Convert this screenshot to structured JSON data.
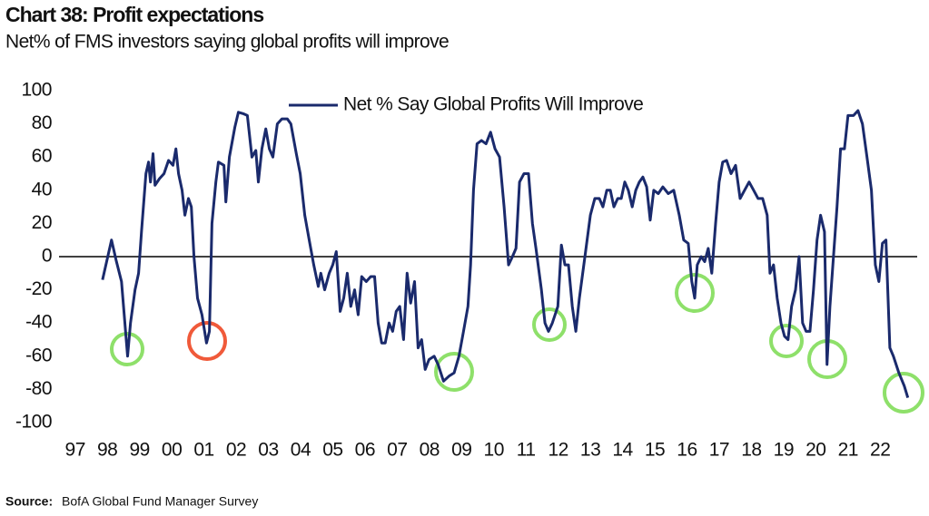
{
  "chart_data": {
    "type": "line",
    "title": "Chart 38: Profit expectations",
    "subtitle": "Net% of FMS investors saying global profits will improve",
    "source": {
      "label": "Source:",
      "text": "BofA Global Fund Manager Survey"
    },
    "legend": "top",
    "xlim": [
      1996.5,
      2023.15
    ],
    "ylim": [
      -100,
      100
    ],
    "yticks": [
      -100,
      -80,
      -60,
      -40,
      -20,
      0,
      20,
      40,
      60,
      80,
      100
    ],
    "xticks": [
      {
        "value": 1997,
        "label": "97"
      },
      {
        "value": 1998,
        "label": "98"
      },
      {
        "value": 1999,
        "label": "99"
      },
      {
        "value": 2000,
        "label": "00"
      },
      {
        "value": 2001,
        "label": "01"
      },
      {
        "value": 2002,
        "label": "02"
      },
      {
        "value": 2003,
        "label": "03"
      },
      {
        "value": 2004,
        "label": "04"
      },
      {
        "value": 2005,
        "label": "05"
      },
      {
        "value": 2006,
        "label": "06"
      },
      {
        "value": 2007,
        "label": "07"
      },
      {
        "value": 2008,
        "label": "08"
      },
      {
        "value": 2009,
        "label": "09"
      },
      {
        "value": 2010,
        "label": "10"
      },
      {
        "value": 2011,
        "label": "11"
      },
      {
        "value": 2012,
        "label": "12"
      },
      {
        "value": 2013,
        "label": "13"
      },
      {
        "value": 2014,
        "label": "14"
      },
      {
        "value": 2015,
        "label": "15"
      },
      {
        "value": 2016,
        "label": "16"
      },
      {
        "value": 2017,
        "label": "17"
      },
      {
        "value": 2018,
        "label": "18"
      },
      {
        "value": 2019,
        "label": "19"
      },
      {
        "value": 2020,
        "label": "20"
      },
      {
        "value": 2021,
        "label": "21"
      },
      {
        "value": 2022,
        "label": "22"
      }
    ],
    "x": [
      1997.85,
      1998.13,
      1998.27,
      1998.44,
      1998.63,
      1998.72,
      1998.86,
      1998.97,
      1999.06,
      1999.2,
      1999.28,
      1999.34,
      1999.42,
      1999.48,
      1999.62,
      1999.76,
      1999.9,
      2000.04,
      2000.13,
      2000.21,
      2000.32,
      2000.41,
      2000.52,
      2000.61,
      2000.69,
      2000.8,
      2000.94,
      2001.08,
      2001.17,
      2001.25,
      2001.37,
      2001.45,
      2001.62,
      2001.68,
      2001.79,
      2001.96,
      2002.07,
      2002.24,
      2002.35,
      2002.49,
      2002.61,
      2002.69,
      2002.8,
      2002.92,
      2003.03,
      2003.14,
      2003.28,
      2003.42,
      2003.59,
      2003.7,
      2003.87,
      2003.99,
      2004.13,
      2004.27,
      2004.41,
      2004.55,
      2004.63,
      2004.75,
      2004.89,
      2005.0,
      2005.11,
      2005.23,
      2005.34,
      2005.45,
      2005.56,
      2005.68,
      2005.79,
      2005.9,
      2006.04,
      2006.18,
      2006.3,
      2006.41,
      2006.52,
      2006.63,
      2006.75,
      2006.86,
      2006.97,
      2007.08,
      2007.2,
      2007.31,
      2007.42,
      2007.54,
      2007.65,
      2007.76,
      2007.87,
      2007.99,
      2008.15,
      2008.27,
      2008.44,
      2008.61,
      2008.77,
      2008.92,
      2009.06,
      2009.2,
      2009.28,
      2009.37,
      2009.48,
      2009.62,
      2009.76,
      2009.9,
      2010.04,
      2010.18,
      2010.32,
      2010.46,
      2010.58,
      2010.69,
      2010.8,
      2010.94,
      2011.08,
      2011.2,
      2011.31,
      2011.48,
      2011.59,
      2011.7,
      2011.82,
      2011.99,
      2012.1,
      2012.21,
      2012.32,
      2012.44,
      2012.55,
      2012.66,
      2012.83,
      2013.0,
      2013.14,
      2013.28,
      2013.39,
      2013.51,
      2013.62,
      2013.73,
      2013.85,
      2013.96,
      2014.07,
      2014.18,
      2014.3,
      2014.41,
      2014.52,
      2014.63,
      2014.75,
      2014.86,
      2014.97,
      2015.11,
      2015.25,
      2015.42,
      2015.59,
      2015.76,
      2015.9,
      2016.04,
      2016.15,
      2016.24,
      2016.32,
      2016.44,
      2016.55,
      2016.66,
      2016.77,
      2016.89,
      2017.0,
      2017.11,
      2017.23,
      2017.37,
      2017.51,
      2017.65,
      2017.79,
      2017.93,
      2018.07,
      2018.21,
      2018.35,
      2018.49,
      2018.58,
      2018.69,
      2018.8,
      2018.92,
      2019.03,
      2019.14,
      2019.25,
      2019.37,
      2019.48,
      2019.59,
      2019.7,
      2019.82,
      2019.93,
      2020.04,
      2020.15,
      2020.27,
      2020.35,
      2020.44,
      2020.55,
      2020.66,
      2020.77,
      2020.89,
      2021.0,
      2021.17,
      2021.31,
      2021.45,
      2021.59,
      2021.73,
      2021.85,
      2021.96,
      2022.07,
      2022.18,
      2022.3,
      2022.41,
      2022.58,
      2022.75,
      2022.86
    ],
    "series": [
      {
        "name": "Net % Say Global Profits Will Improve",
        "color": "#1a2a6c",
        "values": [
          -14,
          10,
          -2,
          -15,
          -60,
          -40,
          -20,
          -10,
          15,
          50,
          57,
          45,
          62,
          43,
          47,
          50,
          58,
          55,
          65,
          50,
          40,
          25,
          35,
          30,
          0,
          -25,
          -35,
          -52,
          -45,
          20,
          45,
          57,
          55,
          33,
          60,
          78,
          87,
          86,
          85,
          60,
          64,
          45,
          65,
          77,
          65,
          60,
          80,
          83,
          83,
          80,
          62,
          50,
          25,
          10,
          -5,
          -18,
          -10,
          -20,
          -10,
          -5,
          3,
          -33,
          -25,
          -10,
          -30,
          -20,
          -35,
          -12,
          -15,
          -12,
          -12,
          -40,
          -52,
          -52,
          -40,
          -45,
          -33,
          -30,
          -50,
          -10,
          -28,
          -15,
          -55,
          -50,
          -68,
          -62,
          -60,
          -65,
          -75,
          -72,
          -70,
          -60,
          -45,
          -30,
          -5,
          40,
          68,
          70,
          68,
          75,
          65,
          60,
          30,
          -5,
          0,
          5,
          45,
          50,
          50,
          20,
          5,
          -20,
          -40,
          -45,
          -40,
          -30,
          7,
          -5,
          -5,
          -30,
          -45,
          -25,
          0,
          25,
          35,
          35,
          30,
          40,
          40,
          30,
          35,
          35,
          45,
          40,
          30,
          40,
          45,
          48,
          42,
          22,
          40,
          38,
          42,
          38,
          40,
          25,
          10,
          8,
          -15,
          -25,
          -5,
          0,
          -3,
          5,
          -10,
          20,
          45,
          57,
          58,
          50,
          55,
          35,
          40,
          45,
          40,
          35,
          35,
          25,
          -10,
          -5,
          -25,
          -40,
          -48,
          -50,
          -30,
          -20,
          0,
          -40,
          -45,
          -45,
          -20,
          10,
          25,
          15,
          -65,
          -30,
          0,
          30,
          65,
          65,
          85,
          85,
          88,
          80,
          60,
          40,
          -5,
          -15,
          8,
          10,
          -55,
          -60,
          -70,
          -78,
          -85
        ]
      }
    ]
  }
}
